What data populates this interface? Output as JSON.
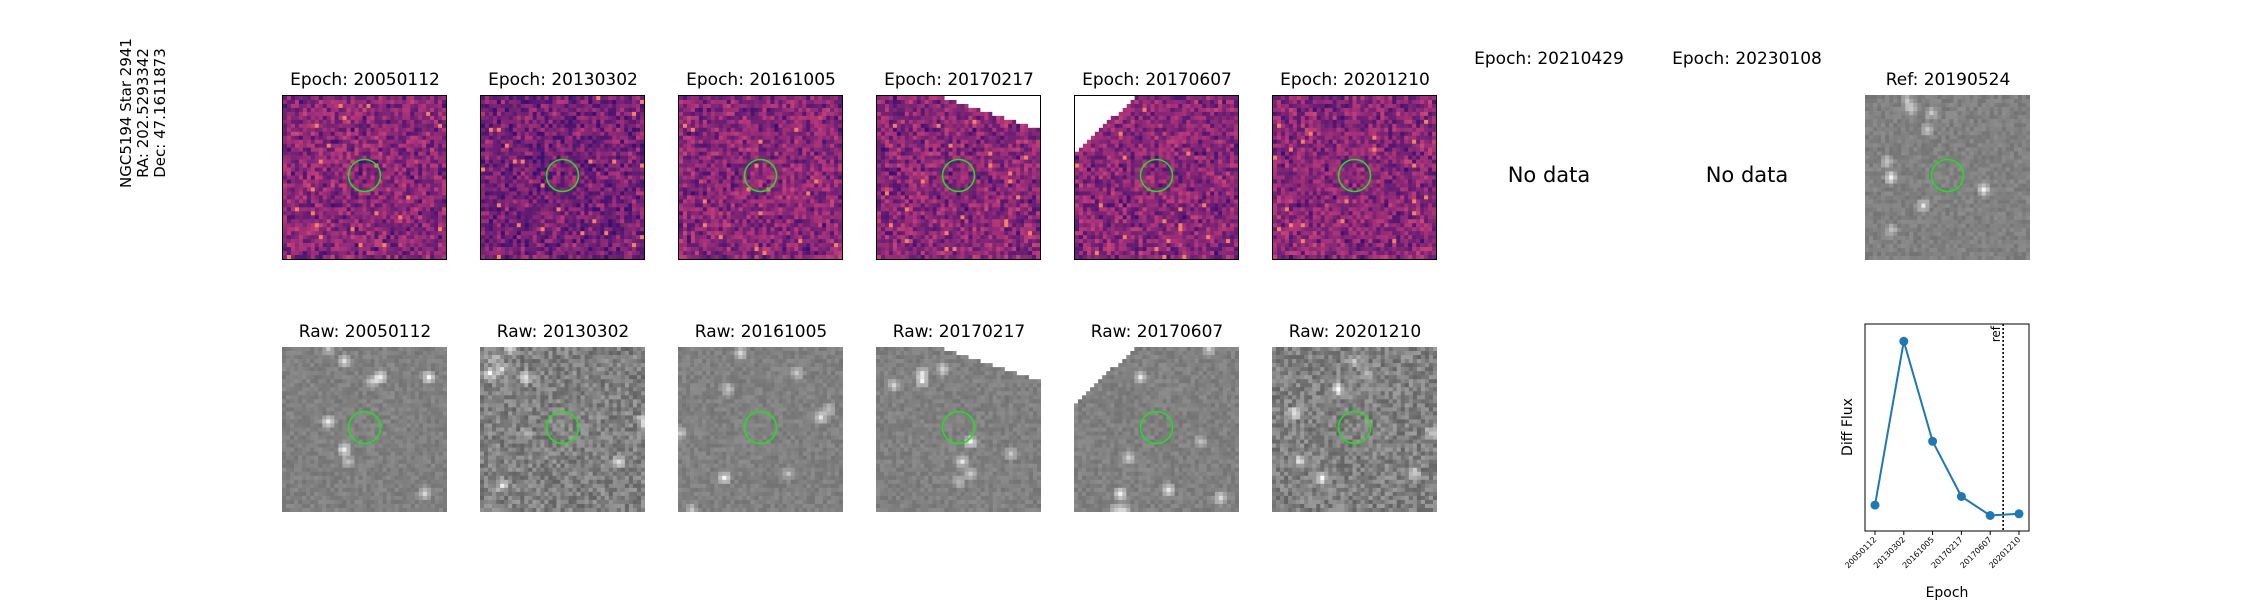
{
  "star_label": {
    "line1": "NGC5194 Star 2941",
    "line2": "RA: 202.5293342",
    "line3": "Dec: 47.1611873"
  },
  "epochs": [
    {
      "title": "Epoch: 20050112",
      "raw_title": "Raw: 20050112",
      "has_data": true,
      "mask": "none"
    },
    {
      "title": "Epoch: 20130302",
      "raw_title": "Raw: 20130302",
      "has_data": true,
      "mask": "none"
    },
    {
      "title": "Epoch: 20161005",
      "raw_title": "Raw: 20161005",
      "has_data": true,
      "mask": "none"
    },
    {
      "title": "Epoch: 20170217",
      "raw_title": "Raw: 20170217",
      "has_data": true,
      "mask": "top-right"
    },
    {
      "title": "Epoch: 20170607",
      "raw_title": "Raw: 20170607",
      "has_data": true,
      "mask": "top-left"
    },
    {
      "title": "Epoch: 20201210",
      "raw_title": "Raw: 20201210",
      "has_data": true,
      "mask": "none"
    },
    {
      "title": "Epoch: 20210429",
      "has_data": false,
      "no_data_text": "No data"
    },
    {
      "title": "Epoch: 20230108",
      "has_data": false,
      "no_data_text": "No data"
    }
  ],
  "reference": {
    "title": "Ref: 20190524"
  },
  "colors": {
    "circle": "#22dd22",
    "series": "#1f77b4",
    "diff_low": "#3b0f70",
    "diff_mid": "#b73779",
    "diff_high": "#fc8961"
  },
  "chart_data": {
    "type": "line",
    "categories": [
      "20050112",
      "20130302",
      "20161005",
      "20170217",
      "20170607",
      "20201210"
    ],
    "series": [
      {
        "values": [
          0.05,
          1.0,
          0.42,
          0.1,
          -0.01,
          0.0
        ]
      }
    ],
    "xlabel": "Epoch",
    "ylabel": "Diff Flux",
    "ylim": [
      -0.1,
      1.1
    ],
    "reference_line": {
      "position_between": [
        "20170607",
        "20201210"
      ],
      "fraction": 0.45,
      "label": "ref",
      "style": "dotted"
    },
    "grid": false
  }
}
